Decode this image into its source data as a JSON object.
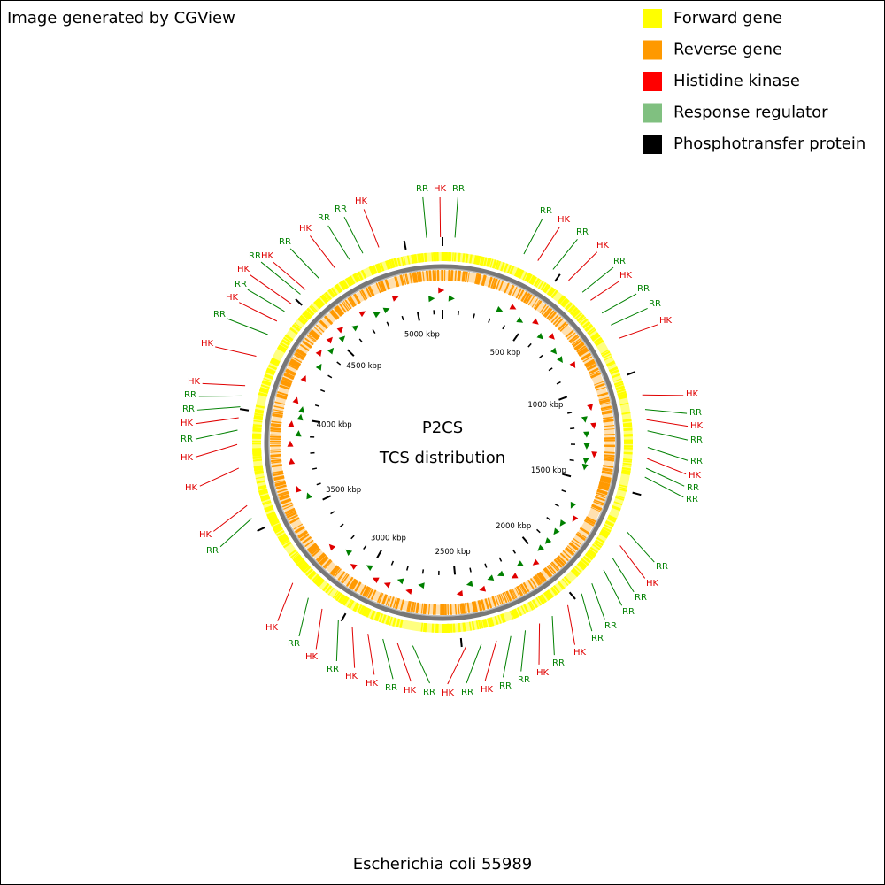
{
  "header": {
    "credit": "Image generated by CGView"
  },
  "legend": [
    {
      "label": "Forward gene",
      "color": "#ffff00"
    },
    {
      "label": "Reverse gene",
      "color": "#ff9900"
    },
    {
      "label": "Histidine kinase",
      "color": "#ff0000"
    },
    {
      "label": "Response regulator",
      "color": "#80c080"
    },
    {
      "label": "Phosphotransfer protein",
      "color": "#000000"
    }
  ],
  "center": {
    "title": "P2CS",
    "subtitle": "TCS distribution"
  },
  "scale_labels": [
    "500 kbp",
    "1000 kbp",
    "1500 kbp",
    "2000 kbp",
    "2500 kbp",
    "3000 kbp",
    "3500 kbp",
    "4000 kbp",
    "4500 kbp",
    "5000 kbp"
  ],
  "feature_labels": [
    {
      "text": "RR",
      "color": "#008000"
    },
    {
      "text": "HK",
      "color": "#e00000"
    },
    {
      "text": "RR",
      "color": "#008000"
    },
    {
      "text": "RR",
      "color": "#008000"
    },
    {
      "text": "HK",
      "color": "#e00000"
    },
    {
      "text": "RR",
      "color": "#008000"
    },
    {
      "text": "HK",
      "color": "#e00000"
    },
    {
      "text": "RR",
      "color": "#008000"
    },
    {
      "text": "HK",
      "color": "#e00000"
    },
    {
      "text": "RR",
      "color": "#008000"
    },
    {
      "text": "RR",
      "color": "#008000"
    },
    {
      "text": "HK",
      "color": "#e00000"
    },
    {
      "text": "HK",
      "color": "#e00000"
    },
    {
      "text": "RR",
      "color": "#008000"
    },
    {
      "text": "HK",
      "color": "#e00000"
    },
    {
      "text": "RR",
      "color": "#008000"
    },
    {
      "text": "RR",
      "color": "#008000"
    },
    {
      "text": "HK",
      "color": "#e00000"
    },
    {
      "text": "RR",
      "color": "#008000"
    },
    {
      "text": "RR",
      "color": "#008000"
    },
    {
      "text": "RR",
      "color": "#008000"
    },
    {
      "text": "HK",
      "color": "#e00000"
    },
    {
      "text": "RR",
      "color": "#008000"
    },
    {
      "text": "RR",
      "color": "#008000"
    },
    {
      "text": "RR",
      "color": "#008000"
    },
    {
      "text": "RR",
      "color": "#008000"
    },
    {
      "text": "HK",
      "color": "#e00000"
    },
    {
      "text": "RR",
      "color": "#008000"
    },
    {
      "text": "HK",
      "color": "#e00000"
    },
    {
      "text": "RR",
      "color": "#008000"
    },
    {
      "text": "RR",
      "color": "#008000"
    },
    {
      "text": "HK",
      "color": "#e00000"
    },
    {
      "text": "RR",
      "color": "#008000"
    },
    {
      "text": "HK",
      "color": "#e00000"
    },
    {
      "text": "RR",
      "color": "#008000"
    },
    {
      "text": "HK",
      "color": "#e00000"
    },
    {
      "text": "RR",
      "color": "#008000"
    },
    {
      "text": "HK",
      "color": "#e00000"
    },
    {
      "text": "HK",
      "color": "#e00000"
    },
    {
      "text": "RR",
      "color": "#008000"
    },
    {
      "text": "HK",
      "color": "#e00000"
    },
    {
      "text": "RR",
      "color": "#008000"
    },
    {
      "text": "HK",
      "color": "#e00000"
    },
    {
      "text": "RR",
      "color": "#008000"
    },
    {
      "text": "HK",
      "color": "#e00000"
    },
    {
      "text": "HK",
      "color": "#e00000"
    },
    {
      "text": "HK",
      "color": "#e00000"
    },
    {
      "text": "RR",
      "color": "#008000"
    },
    {
      "text": "HK",
      "color": "#e00000"
    },
    {
      "text": "RR",
      "color": "#008000"
    },
    {
      "text": "RR",
      "color": "#008000"
    },
    {
      "text": "HK",
      "color": "#e00000"
    },
    {
      "text": "HK",
      "color": "#e00000"
    },
    {
      "text": "RR",
      "color": "#008000"
    },
    {
      "text": "HK",
      "color": "#e00000"
    },
    {
      "text": "RR",
      "color": "#008000"
    },
    {
      "text": "HK",
      "color": "#e00000"
    },
    {
      "text": "RR",
      "color": "#008000"
    },
    {
      "text": "HK",
      "color": "#e00000"
    },
    {
      "text": "RR",
      "color": "#008000"
    },
    {
      "text": "HK",
      "color": "#e00000"
    },
    {
      "text": "RR",
      "color": "#008000"
    },
    {
      "text": "RR",
      "color": "#008000"
    },
    {
      "text": "HK",
      "color": "#e00000"
    }
  ],
  "footer": {
    "organism": "Escherichia coli 55989"
  }
}
